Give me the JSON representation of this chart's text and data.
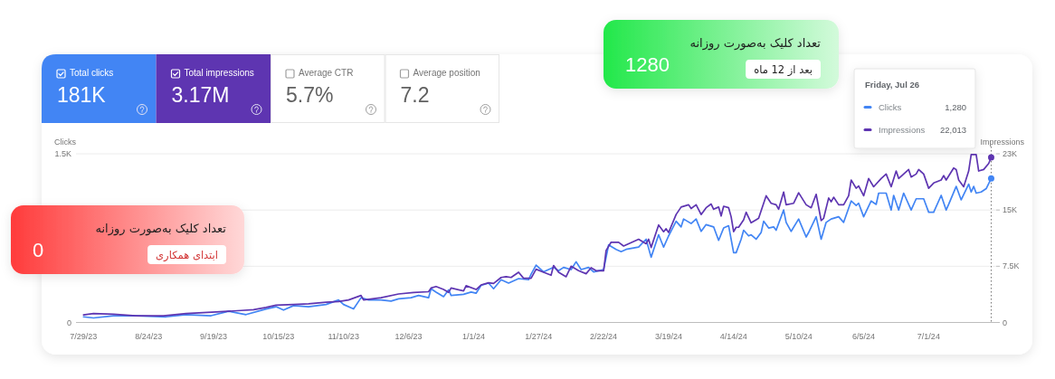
{
  "chart_data": [
    {
      "type": "other",
      "annotations": [
        "Total clicks",
        "181K",
        "Total impressions",
        "3.17M",
        "Average CTR",
        "5.7%",
        "Average position",
        "7.2"
      ],
      "colors": [
        "#4285f4",
        "#5e35b1",
        null,
        null
      ]
    },
    {
      "type": "other",
      "color": "#22e84a",
      "annotations": [
        "تعداد کلیک به‌صورت روزانه",
        "بعد از 12 ماه",
        "1280"
      ]
    },
    {
      "type": "line",
      "xlim": [
        "2023-07-26",
        "2024-07-28"
      ],
      "xticks": [
        {
          "value": "2023-07-29",
          "label": "7/29/23"
        },
        {
          "value": "2023-08-24",
          "label": "8/24/23"
        },
        {
          "value": "2023-09-19",
          "label": "9/19/23"
        },
        {
          "value": "2023-10-15",
          "label": "10/15/23"
        },
        {
          "value": "2023-11-10",
          "label": "11/10/23"
        },
        {
          "value": "2023-12-06",
          "label": "12/6/23"
        },
        {
          "value": "2024-01-01",
          "label": "1/1/24"
        },
        {
          "value": "2024-01-27",
          "label": "1/27/24"
        },
        {
          "value": "2024-02-22",
          "label": "2/22/24"
        },
        {
          "value": "2024-03-19",
          "label": "3/19/24"
        },
        {
          "value": "2024-04-14",
          "label": "4/14/24"
        },
        {
          "value": "2024-05-10",
          "label": "5/10/24"
        },
        {
          "value": "2024-06-05",
          "label": "6/5/24"
        },
        {
          "value": "2024-07-01",
          "label": "7/1/24"
        }
      ],
      "ylim": [
        0,
        1500
      ],
      "yticks": [
        0,
        {
          "value": 500,
          "label": null
        },
        {
          "value": 1000,
          "label": null
        },
        {
          "value": 1500,
          "label": "1.5K"
        }
      ],
      "y2lim": [
        0,
        22500
      ],
      "y2ticks": [
        0,
        {
          "value": 7500,
          "label": "7.5K"
        },
        {
          "value": 15000,
          "label": "15K"
        },
        {
          "value": 22500,
          "label": "23K"
        }
      ],
      "ylabel": "Clicks",
      "y2label": "Impressions",
      "grid": "y",
      "legend": "top right",
      "legend_title": "Friday, Jul 26",
      "annotations": [
        "1,280",
        "22,013"
      ],
      "ref_lines": [
        {
          "axis": "x",
          "value": "2024-07-26",
          "color": "#757575",
          "line_style": "dotted"
        }
      ],
      "series": [
        {
          "name": "Clicks",
          "color": "#4285f4",
          "x": [
            "2023-07-29",
            "2023-08-02",
            "2023-08-10",
            "2023-08-19",
            "2023-08-31",
            "2023-09-08",
            "2023-09-18",
            "2023-09-25",
            "2023-10-02",
            "2023-10-10",
            "2023-10-14",
            "2023-10-17",
            "2023-10-21",
            "2023-10-27",
            "2023-11-03",
            "2023-11-08",
            "2023-11-10",
            "2023-11-14",
            "2023-11-17",
            "2023-11-20",
            "2023-11-25",
            "2023-11-29",
            "2023-12-02",
            "2023-12-07",
            "2023-12-10",
            "2023-12-14",
            "2023-12-15",
            "2023-12-17",
            "2023-12-20",
            "2023-12-22",
            "2023-12-23",
            "2023-12-28",
            "2023-12-31",
            "2024-01-02",
            "2024-01-04",
            "2024-01-07",
            "2024-01-09",
            "2024-01-12",
            "2024-01-15",
            "2024-01-19",
            "2024-01-23",
            "2024-01-24",
            "2024-01-26",
            "2024-01-29",
            "2024-02-02",
            "2024-02-04",
            "2024-02-06",
            "2024-02-09",
            "2024-02-11",
            "2024-02-13",
            "2024-02-16",
            "2024-02-18",
            "2024-02-22",
            "2024-02-24",
            "2024-02-27",
            "2024-02-29",
            "2024-03-02",
            "2024-03-07",
            "2024-03-10",
            "2024-03-12",
            "2024-03-15",
            "2024-03-17",
            "2024-03-19",
            "2024-03-22",
            "2024-03-24",
            "2024-03-25",
            "2024-03-28",
            "2024-03-30",
            "2024-04-01",
            "2024-04-03",
            "2024-04-06",
            "2024-04-08",
            "2024-04-10",
            "2024-04-11",
            "2024-04-12",
            "2024-04-14",
            "2024-04-15",
            "2024-04-17",
            "2024-04-18",
            "2024-04-20",
            "2024-04-21",
            "2024-04-23",
            "2024-04-25",
            "2024-04-26",
            "2024-04-28",
            "2024-04-30",
            "2024-05-01",
            "2024-05-04",
            "2024-05-05",
            "2024-05-07",
            "2024-05-10",
            "2024-05-13",
            "2024-05-14",
            "2024-05-17",
            "2024-05-19",
            "2024-05-21",
            "2024-05-23",
            "2024-05-26",
            "2024-05-28",
            "2024-05-31",
            "2024-06-02",
            "2024-06-03",
            "2024-06-05",
            "2024-06-08",
            "2024-06-10",
            "2024-06-11",
            "2024-06-14",
            "2024-06-16",
            "2024-06-17",
            "2024-06-19",
            "2024-06-21",
            "2024-06-24",
            "2024-06-26",
            "2024-06-29",
            "2024-07-01",
            "2024-07-03",
            "2024-07-06",
            "2024-07-08",
            "2024-07-09",
            "2024-07-12",
            "2024-07-14",
            "2024-07-17",
            "2024-07-18",
            "2024-07-19",
            "2024-07-20",
            "2024-07-22",
            "2024-07-24",
            "2024-07-26"
          ],
          "values": [
            50,
            40,
            60,
            60,
            50,
            70,
            60,
            100,
            70,
            120,
            140,
            110,
            150,
            140,
            160,
            200,
            160,
            120,
            220,
            200,
            200,
            190,
            210,
            220,
            240,
            220,
            300,
            270,
            230,
            290,
            240,
            250,
            270,
            260,
            330,
            350,
            300,
            380,
            350,
            390,
            380,
            430,
            510,
            450,
            490,
            460,
            490,
            470,
            540,
            470,
            490,
            450,
            470,
            690,
            650,
            630,
            650,
            670,
            740,
            580,
            780,
            670,
            770,
            900,
            850,
            920,
            880,
            920,
            810,
            870,
            850,
            730,
            840,
            850,
            860,
            620,
            620,
            740,
            820,
            770,
            780,
            740,
            800,
            900,
            840,
            850,
            820,
            1000,
            890,
            810,
            920,
            760,
            800,
            940,
            740,
            890,
            920,
            940,
            890,
            1080,
            1040,
            1060,
            940,
            1080,
            1050,
            1150,
            1150,
            1000,
            1130,
            1000,
            1150,
            1000,
            1100,
            1100,
            980,
            980,
            1130,
            1000,
            1050,
            1210,
            1090,
            1230,
            1160,
            1210,
            1150,
            1160,
            1190,
            1280
          ]
        },
        {
          "name": "Impressions",
          "color": "#5e35b1",
          "axis": "y2",
          "x": [
            "2023-07-29",
            "2023-08-02",
            "2023-08-10",
            "2023-08-19",
            "2023-08-30",
            "2023-09-08",
            "2023-09-20",
            "2023-09-30",
            "2023-10-05",
            "2023-10-10",
            "2023-10-14",
            "2023-10-21",
            "2023-10-27",
            "2023-11-03",
            "2023-11-08",
            "2023-11-12",
            "2023-11-17",
            "2023-11-18",
            "2023-11-25",
            "2023-12-02",
            "2023-12-08",
            "2023-12-14",
            "2023-12-15",
            "2023-12-17",
            "2023-12-20",
            "2023-12-22",
            "2023-12-23",
            "2023-12-28",
            "2023-12-29",
            "2024-01-02",
            "2024-01-04",
            "2024-01-07",
            "2024-01-09",
            "2024-01-12",
            "2024-01-14",
            "2024-01-16",
            "2024-01-19",
            "2024-01-21",
            "2024-01-24",
            "2024-01-26",
            "2024-01-29",
            "2024-02-01",
            "2024-02-02",
            "2024-02-04",
            "2024-02-07",
            "2024-02-09",
            "2024-02-12",
            "2024-02-15",
            "2024-02-17",
            "2024-02-19",
            "2024-02-22",
            "2024-02-23",
            "2024-02-25",
            "2024-02-28",
            "2024-03-01",
            "2024-03-07",
            "2024-03-10",
            "2024-03-11",
            "2024-03-12",
            "2024-03-15",
            "2024-03-17",
            "2024-03-18",
            "2024-03-19",
            "2024-03-22",
            "2024-03-24",
            "2024-03-27",
            "2024-03-28",
            "2024-03-30",
            "2024-04-01",
            "2024-04-03",
            "2024-04-05",
            "2024-04-06",
            "2024-04-08",
            "2024-04-09",
            "2024-04-10",
            "2024-04-12",
            "2024-04-13",
            "2024-04-14",
            "2024-04-15",
            "2024-04-16",
            "2024-04-18",
            "2024-04-19",
            "2024-04-21",
            "2024-04-23",
            "2024-04-24",
            "2024-04-27",
            "2024-04-29",
            "2024-05-01",
            "2024-05-02",
            "2024-05-04",
            "2024-05-05",
            "2024-05-08",
            "2024-05-10",
            "2024-05-13",
            "2024-05-15",
            "2024-05-17",
            "2024-05-19",
            "2024-05-20",
            "2024-05-22",
            "2024-05-23",
            "2024-05-24",
            "2024-05-26",
            "2024-05-28",
            "2024-05-30",
            "2024-05-31",
            "2024-06-02",
            "2024-06-03",
            "2024-06-05",
            "2024-06-07",
            "2024-06-09",
            "2024-06-12",
            "2024-06-14",
            "2024-06-16",
            "2024-06-18",
            "2024-06-19",
            "2024-06-21",
            "2024-06-23",
            "2024-06-24",
            "2024-06-26",
            "2024-06-27",
            "2024-06-29",
            "2024-07-01",
            "2024-07-03",
            "2024-07-06",
            "2024-07-07",
            "2024-07-08",
            "2024-07-11",
            "2024-07-12",
            "2024-07-13",
            "2024-07-15",
            "2024-07-17",
            "2024-07-18",
            "2024-07-20",
            "2024-07-21",
            "2024-07-23",
            "2024-07-25",
            "2024-07-26"
          ],
          "values": [
            1000,
            1200,
            1100,
            900,
            900,
            1200,
            1400,
            1600,
            1700,
            2000,
            2300,
            2400,
            2500,
            2700,
            2800,
            3000,
            3600,
            3000,
            3300,
            3800,
            4000,
            4100,
            4600,
            4800,
            4400,
            4000,
            4600,
            4200,
            4900,
            4400,
            5000,
            5300,
            5200,
            6000,
            6100,
            6000,
            6700,
            5900,
            5900,
            7100,
            6700,
            6300,
            7600,
            6700,
            6100,
            7500,
            6900,
            6500,
            7300,
            6900,
            6900,
            9600,
            10700,
            10700,
            10200,
            11100,
            10500,
            11100,
            10000,
            13000,
            12100,
            12500,
            12000,
            14400,
            15400,
            15700,
            15200,
            15700,
            14400,
            15300,
            15800,
            15100,
            15400,
            14200,
            15500,
            15300,
            14100,
            12100,
            12700,
            12700,
            13700,
            14700,
            13300,
            13700,
            13900,
            16900,
            15900,
            15700,
            15100,
            17400,
            15700,
            15900,
            17300,
            15700,
            15300,
            17100,
            13600,
            13900,
            16600,
            16100,
            16700,
            15700,
            15700,
            16900,
            19000,
            17900,
            18200,
            16900,
            19200,
            18100,
            19200,
            19800,
            18100,
            20200,
            19200,
            19800,
            20400,
            19400,
            19800,
            20400,
            19800,
            17900,
            18600,
            19000,
            19600,
            19000,
            20600,
            20400,
            19000,
            18100,
            20200,
            22400,
            22400,
            20200,
            20400,
            21200,
            22013
          ]
        }
      ]
    },
    {
      "type": "other",
      "color": "#ff3b3b",
      "annotations": [
        "تعداد کلیک به‌صورت روزانه",
        "ابتدای همکاری",
        "0"
      ]
    }
  ]
}
